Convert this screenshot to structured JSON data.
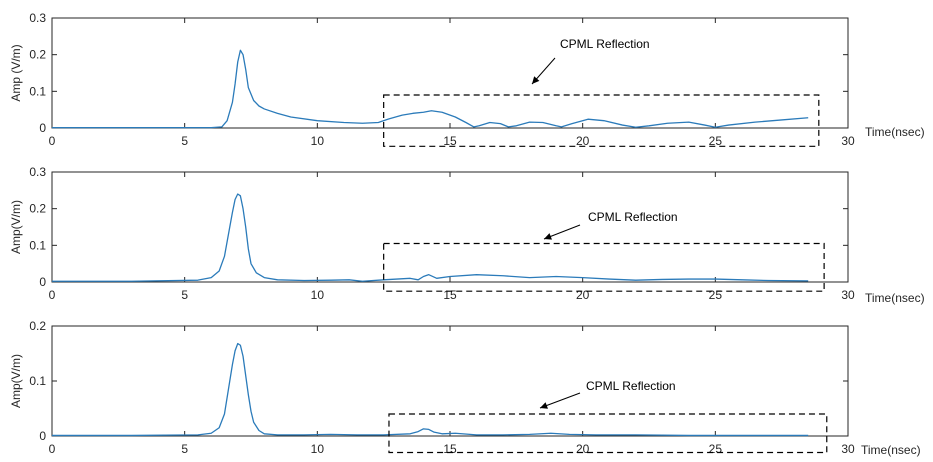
{
  "chart_data": [
    {
      "type": "line",
      "title": "",
      "xlabel": "Time(nsec)",
      "ylabel": "Amp (V/m)",
      "xlim": [
        0,
        30
      ],
      "ylim": [
        0,
        0.3
      ],
      "xticks": [
        0,
        5,
        10,
        15,
        20,
        25,
        30
      ],
      "xtick_labels": [
        "0",
        "5",
        "10",
        "15",
        "20",
        "25",
        "30"
      ],
      "yticks": [
        0,
        0.1,
        0.2,
        0.3
      ],
      "ytick_labels": [
        "0",
        "0.1",
        "0.2",
        "0.3"
      ],
      "grid": false,
      "line_color": "#2b7bba",
      "series": [
        {
          "x": [
            0,
            3,
            6.0,
            6.4,
            6.6,
            6.8,
            6.9,
            7.0,
            7.1,
            7.2,
            7.3,
            7.4,
            7.6,
            7.8,
            8.0,
            8.5,
            9,
            10,
            11,
            11.7,
            12.3,
            12.7,
            13.2,
            13.6,
            14.0,
            14.3,
            14.7,
            15.2,
            15.6,
            15.9,
            16.1,
            16.5,
            16.9,
            17.2,
            17.5,
            18.0,
            18.5,
            19.0,
            19.2,
            19.6,
            20.2,
            20.8,
            21.5,
            22.0,
            22.5,
            23.2,
            24.0,
            24.6,
            25.0,
            25.5,
            26.5,
            27.5,
            28.5
          ],
          "y": [
            0.001,
            0.001,
            0.001,
            0.003,
            0.02,
            0.07,
            0.12,
            0.18,
            0.212,
            0.2,
            0.16,
            0.11,
            0.075,
            0.06,
            0.052,
            0.04,
            0.03,
            0.02,
            0.015,
            0.013,
            0.015,
            0.025,
            0.035,
            0.04,
            0.043,
            0.047,
            0.043,
            0.03,
            0.015,
            0.003,
            0.006,
            0.015,
            0.012,
            0.003,
            0.006,
            0.016,
            0.015,
            0.006,
            0.003,
            0.012,
            0.024,
            0.02,
            0.008,
            0.002,
            0.006,
            0.013,
            0.016,
            0.008,
            0.002,
            0.008,
            0.016,
            0.022,
            0.028
          ]
        }
      ],
      "annotation": {
        "text": "CPML Reflection",
        "box": {
          "x0": 12.5,
          "x1": 28.9,
          "y0": -0.05,
          "y1": 0.09
        }
      }
    },
    {
      "type": "line",
      "title": "",
      "xlabel": "Time(nsec)",
      "ylabel": "Amp(V/m)",
      "xlim": [
        0,
        30
      ],
      "ylim": [
        0,
        0.3
      ],
      "xticks": [
        0,
        5,
        10,
        15,
        20,
        25,
        30
      ],
      "xtick_labels": [
        "0",
        "5",
        "10",
        "15",
        "20",
        "25",
        "30"
      ],
      "yticks": [
        0,
        0.1,
        0.2,
        0.3
      ],
      "ytick_labels": [
        "0",
        "0.1",
        "0.2",
        "0.3"
      ],
      "grid": false,
      "line_color": "#2b7bba",
      "series": [
        {
          "x": [
            0,
            3,
            5.5,
            6.0,
            6.3,
            6.5,
            6.7,
            6.8,
            6.9,
            7.0,
            7.1,
            7.2,
            7.3,
            7.4,
            7.5,
            7.7,
            8.0,
            8.5,
            9.5,
            10.5,
            11.2,
            11.7,
            12.5,
            13.5,
            13.8,
            14.0,
            14.2,
            14.5,
            15.0,
            16.0,
            17.0,
            18.0,
            19.0,
            20.0,
            21.0,
            22.0,
            23.0,
            24.0,
            25.0,
            26.0,
            27.0,
            28.5
          ],
          "y": [
            0.002,
            0.002,
            0.005,
            0.012,
            0.03,
            0.07,
            0.15,
            0.19,
            0.225,
            0.24,
            0.235,
            0.2,
            0.15,
            0.09,
            0.05,
            0.025,
            0.012,
            0.006,
            0.004,
            0.005,
            0.006,
            0.002,
            0.006,
            0.01,
            0.006,
            0.015,
            0.02,
            0.01,
            0.015,
            0.02,
            0.017,
            0.012,
            0.015,
            0.012,
            0.008,
            0.005,
            0.007,
            0.008,
            0.008,
            0.006,
            0.004,
            0.003
          ]
        }
      ],
      "annotation": {
        "text": "CPML Reflection",
        "box": {
          "x0": 12.5,
          "x1": 29.1,
          "y0": -0.025,
          "y1": 0.105
        }
      }
    },
    {
      "type": "line",
      "title": "",
      "xlabel": "Time(nsec)",
      "ylabel": "Amp(V/m)",
      "xlim": [
        0,
        30
      ],
      "ylim": [
        0,
        0.2
      ],
      "xticks": [
        0,
        5,
        10,
        15,
        20,
        25,
        30
      ],
      "xtick_labels": [
        "0",
        "5",
        "10",
        "15",
        "20",
        "25",
        "30"
      ],
      "yticks": [
        0,
        0.1,
        0.2
      ],
      "ytick_labels": [
        "0",
        "0.1",
        "0.2"
      ],
      "grid": false,
      "line_color": "#2b7bba",
      "series": [
        {
          "x": [
            0,
            3,
            5.5,
            6.0,
            6.3,
            6.5,
            6.7,
            6.8,
            6.9,
            7.0,
            7.1,
            7.2,
            7.3,
            7.4,
            7.5,
            7.6,
            7.8,
            8.0,
            8.5,
            9.5,
            10.5,
            11.5,
            12.5,
            13.5,
            13.8,
            14.0,
            14.2,
            14.4,
            14.7,
            15.2,
            16.0,
            17.0,
            18.0,
            18.8,
            19.5,
            20.5,
            22.0,
            24.0,
            26.0,
            28.5
          ],
          "y": [
            0.001,
            0.001,
            0.002,
            0.005,
            0.015,
            0.04,
            0.1,
            0.13,
            0.155,
            0.168,
            0.165,
            0.145,
            0.11,
            0.075,
            0.045,
            0.025,
            0.01,
            0.004,
            0.002,
            0.002,
            0.003,
            0.002,
            0.002,
            0.004,
            0.008,
            0.013,
            0.012,
            0.007,
            0.004,
            0.005,
            0.002,
            0.002,
            0.003,
            0.005,
            0.003,
            0.002,
            0.002,
            0.001,
            0.001,
            0.001
          ]
        }
      ],
      "annotation": {
        "text": "CPML Reflection",
        "box": {
          "x0": 12.7,
          "x1": 29.2,
          "y0": -0.03,
          "y1": 0.04
        }
      }
    }
  ]
}
